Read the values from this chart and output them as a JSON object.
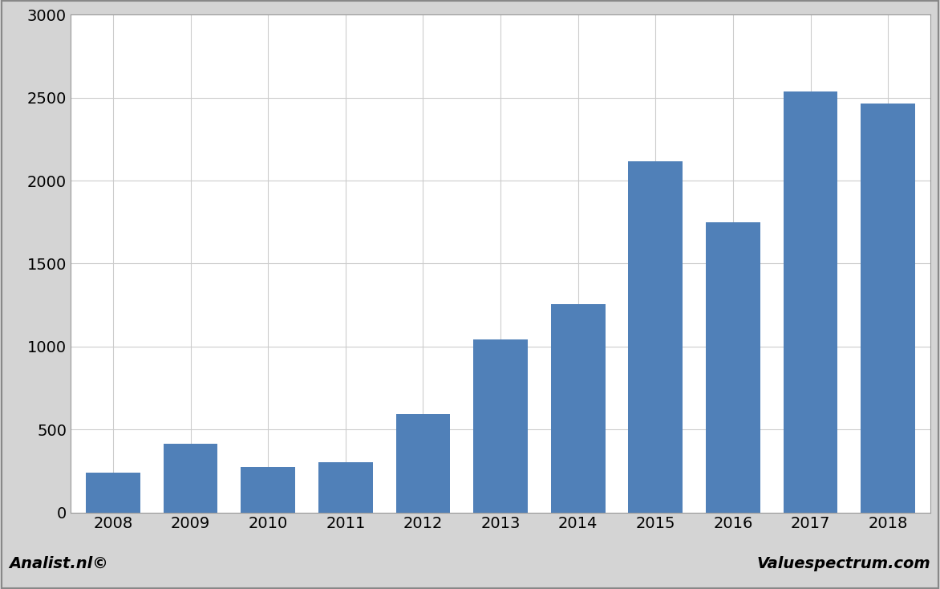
{
  "categories": [
    "2008",
    "2009",
    "2010",
    "2011",
    "2012",
    "2013",
    "2014",
    "2015",
    "2016",
    "2017",
    "2018"
  ],
  "values": [
    240,
    415,
    275,
    305,
    595,
    1045,
    1255,
    2115,
    1750,
    2535,
    2465
  ],
  "bar_color": "#5080b8",
  "ylim": [
    0,
    3000
  ],
  "yticks": [
    0,
    500,
    1000,
    1500,
    2000,
    2500,
    3000
  ],
  "plot_background": "#ffffff",
  "outer_background": "#d4d4d4",
  "grid_color": "#cccccc",
  "footer_left": "Analist.nl©",
  "footer_right": "Valuespectrum.com",
  "footer_fontsize": 14,
  "tick_fontsize": 14,
  "border_color": "#999999"
}
